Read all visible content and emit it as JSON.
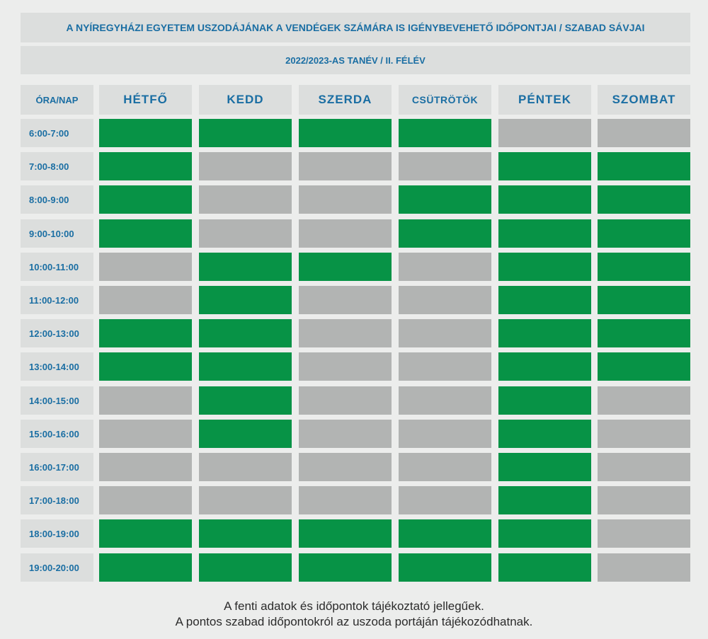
{
  "title": "A NYÍREGYHÁZI EGYETEM USZODÁJÁNAK A VENDÉGEK SZÁMÁRA IS IGÉNYBEVEHETŐ IDŐPONTJAI / SZABAD SÁVJAI",
  "subtitle": "2022/2023-AS TANÉV / II. FÉLÉV",
  "corner_label": "ÓRA/NAP",
  "days": [
    "HÉTFŐ",
    "KEDD",
    "SZERDA",
    "CSÜTRÖTÖK",
    "PÉNTEK",
    "SZOMBAT"
  ],
  "times": [
    "6:00-7:00",
    "7:00-8:00",
    "8:00-9:00",
    "9:00-10:00",
    "10:00-11:00",
    "11:00-12:00",
    "12:00-13:00",
    "13:00-14:00",
    "14:00-15:00",
    "15:00-16:00",
    "16:00-17:00",
    "17:00-18:00",
    "18:00-19:00",
    "19:00-20:00"
  ],
  "availability": [
    [
      1,
      1,
      1,
      1,
      0,
      0
    ],
    [
      1,
      0,
      0,
      0,
      1,
      1
    ],
    [
      1,
      0,
      0,
      1,
      1,
      1
    ],
    [
      1,
      0,
      0,
      1,
      1,
      1
    ],
    [
      0,
      1,
      1,
      0,
      1,
      1
    ],
    [
      0,
      1,
      0,
      0,
      1,
      1
    ],
    [
      1,
      1,
      0,
      0,
      1,
      1
    ],
    [
      1,
      1,
      0,
      0,
      1,
      1
    ],
    [
      0,
      1,
      0,
      0,
      1,
      0
    ],
    [
      0,
      1,
      0,
      0,
      1,
      0
    ],
    [
      0,
      0,
      0,
      0,
      1,
      0
    ],
    [
      0,
      0,
      0,
      0,
      1,
      0
    ],
    [
      1,
      1,
      1,
      1,
      1,
      0
    ],
    [
      1,
      1,
      1,
      1,
      1,
      0
    ]
  ],
  "colors": {
    "free": "#079346",
    "busy": "#b2b4b3",
    "accent": "#1a6ea3"
  },
  "footer": {
    "line1": "A fenti adatok és időpontok tájékoztató jellegűek.",
    "line2": "A pontos szabad időpontokról az uszoda portáján tájékozódhatnak."
  }
}
